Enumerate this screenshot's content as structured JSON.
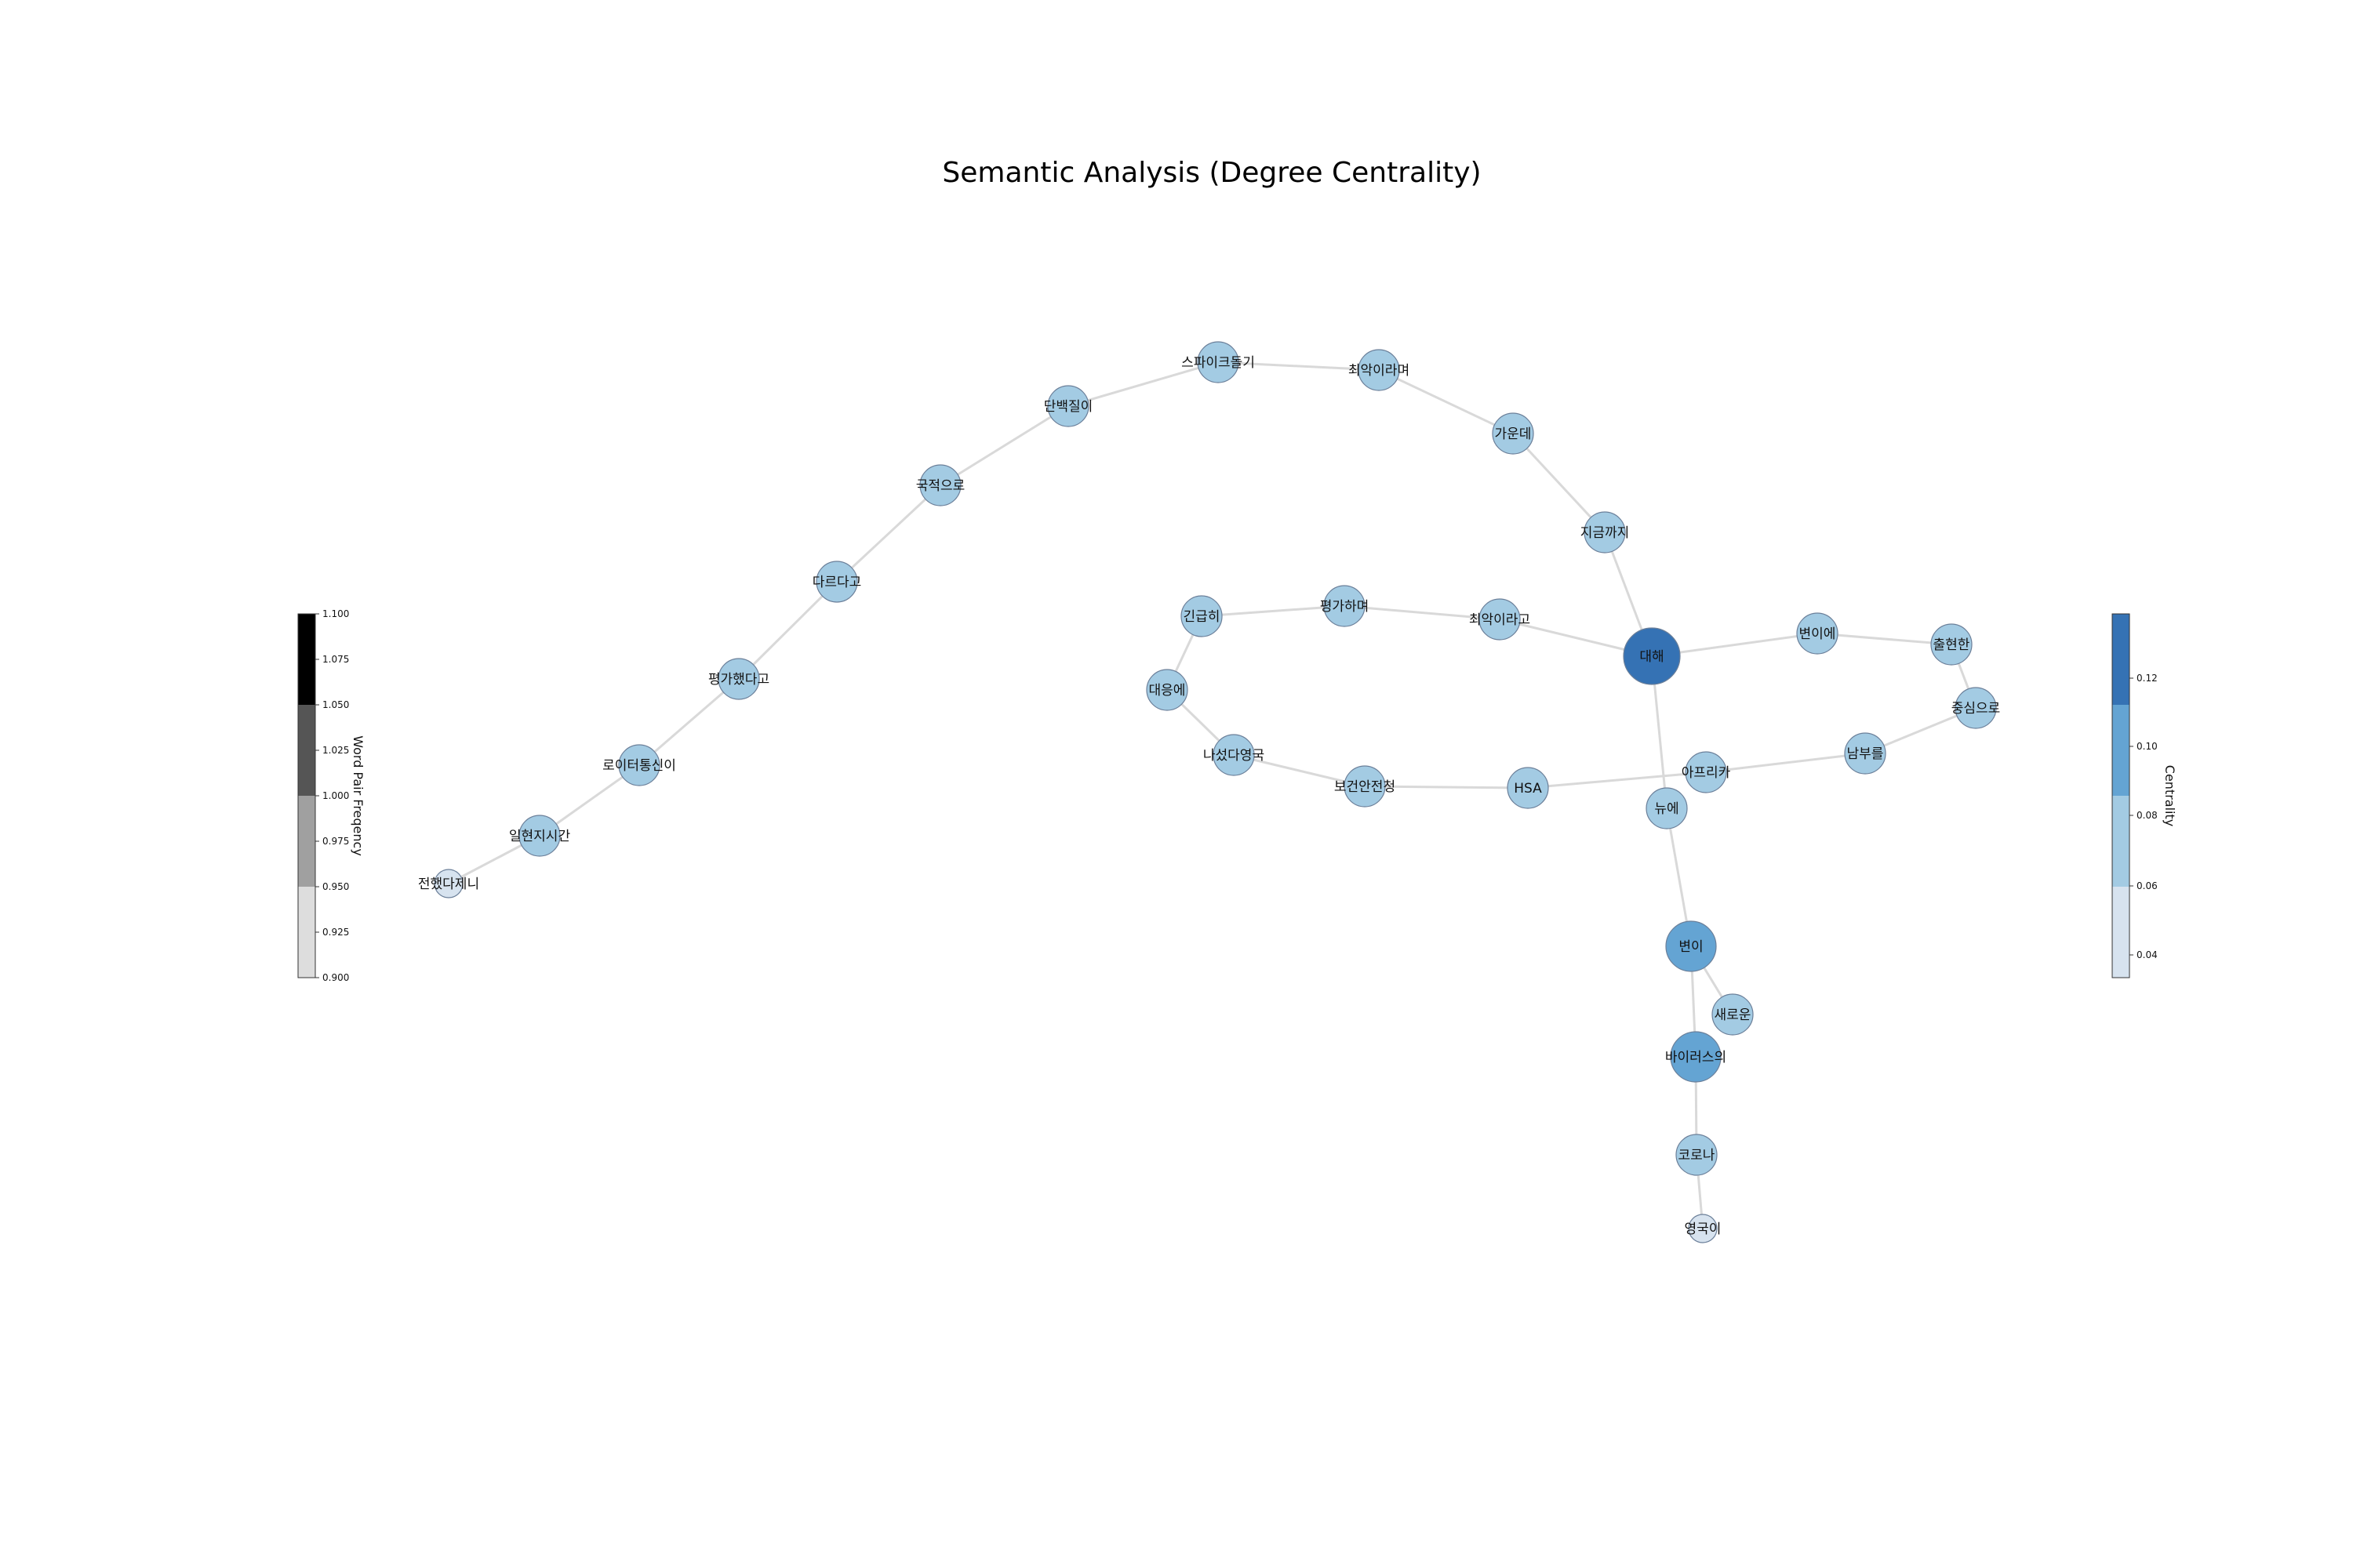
{
  "title": "Semantic Analysis (Degree Centrality)",
  "colorbars": {
    "word_pair": {
      "label": "Word Pair Freqency",
      "ticks": [
        "1.100",
        "1.075",
        "1.050",
        "1.025",
        "1.000",
        "0.975",
        "0.950",
        "0.925",
        "0.900"
      ],
      "bands": [
        "#000000",
        "#555555",
        "#a0a0a0",
        "#dddddd"
      ]
    },
    "centrality": {
      "label": "Centrality",
      "ticks": [
        "0.12",
        "0.10",
        "0.08",
        "0.06",
        "0.04"
      ],
      "bands": [
        "#3572b4",
        "#64a4d3",
        "#a3cbe3",
        "#d7e3ef"
      ]
    }
  },
  "chart_data": {
    "type": "network",
    "title": "Semantic Analysis (Degree Centrality)",
    "nodes": [
      {
        "id": "전했다제니",
        "centrality": 0.035
      },
      {
        "id": "일현지시간",
        "centrality": 0.07
      },
      {
        "id": "로이터통신이",
        "centrality": 0.07
      },
      {
        "id": "평가했다고",
        "centrality": 0.07
      },
      {
        "id": "다르다고",
        "centrality": 0.07
      },
      {
        "id": "국적으로",
        "centrality": 0.07
      },
      {
        "id": "단백질이",
        "centrality": 0.07
      },
      {
        "id": "스파이크돌기",
        "centrality": 0.07
      },
      {
        "id": "최악이라며",
        "centrality": 0.07
      },
      {
        "id": "가운데",
        "centrality": 0.07
      },
      {
        "id": "지금까지",
        "centrality": 0.07
      },
      {
        "id": "대해",
        "centrality": 0.14
      },
      {
        "id": "최악이라고",
        "centrality": 0.07
      },
      {
        "id": "평가하며",
        "centrality": 0.07
      },
      {
        "id": "긴급히",
        "centrality": 0.07
      },
      {
        "id": "대응에",
        "centrality": 0.07
      },
      {
        "id": "나섰다영국",
        "centrality": 0.07
      },
      {
        "id": "보건안전청",
        "centrality": 0.07
      },
      {
        "id": "HSA",
        "centrality": 0.07
      },
      {
        "id": "아프리카",
        "centrality": 0.07
      },
      {
        "id": "남부를",
        "centrality": 0.07
      },
      {
        "id": "중심으로",
        "centrality": 0.07
      },
      {
        "id": "출현한",
        "centrality": 0.07
      },
      {
        "id": "변이에",
        "centrality": 0.07
      },
      {
        "id": "뉴에",
        "centrality": 0.07
      },
      {
        "id": "변이",
        "centrality": 0.105
      },
      {
        "id": "새로운",
        "centrality": 0.07
      },
      {
        "id": "바이러스의",
        "centrality": 0.105
      },
      {
        "id": "코로나",
        "centrality": 0.07
      },
      {
        "id": "영국이",
        "centrality": 0.035
      }
    ],
    "edges": [
      [
        "전했다제니",
        "일현지시간",
        1
      ],
      [
        "일현지시간",
        "로이터통신이",
        1
      ],
      [
        "로이터통신이",
        "평가했다고",
        1
      ],
      [
        "평가했다고",
        "다르다고",
        1
      ],
      [
        "다르다고",
        "국적으로",
        1
      ],
      [
        "국적으로",
        "단백질이",
        1
      ],
      [
        "단백질이",
        "스파이크돌기",
        1
      ],
      [
        "스파이크돌기",
        "최악이라며",
        1
      ],
      [
        "최악이라며",
        "가운데",
        1
      ],
      [
        "가운데",
        "지금까지",
        1
      ],
      [
        "지금까지",
        "대해",
        1
      ],
      [
        "대해",
        "최악이라고",
        1
      ],
      [
        "최악이라고",
        "평가하며",
        1
      ],
      [
        "평가하며",
        "긴급히",
        1
      ],
      [
        "긴급히",
        "대응에",
        1
      ],
      [
        "대응에",
        "나섰다영국",
        1
      ],
      [
        "나섰다영국",
        "보건안전청",
        1
      ],
      [
        "보건안전청",
        "HSA",
        1
      ],
      [
        "HSA",
        "아프리카",
        1
      ],
      [
        "아프리카",
        "남부를",
        1
      ],
      [
        "남부를",
        "중심으로",
        1
      ],
      [
        "중심으로",
        "출현한",
        1
      ],
      [
        "출현한",
        "변이에",
        1
      ],
      [
        "변이에",
        "대해",
        1
      ],
      [
        "대해",
        "뉴에",
        1
      ],
      [
        "뉴에",
        "변이",
        1
      ],
      [
        "변이",
        "새로운",
        1
      ],
      [
        "변이",
        "바이러스의",
        1
      ],
      [
        "바이러스의",
        "코로나",
        1
      ],
      [
        "코로나",
        "영국이",
        1
      ]
    ]
  }
}
